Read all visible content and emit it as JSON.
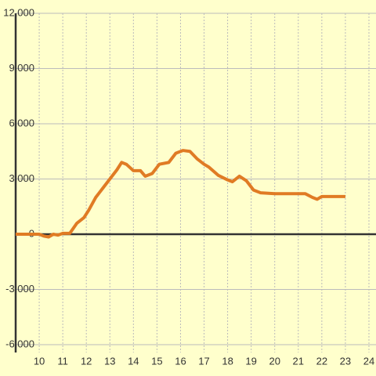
{
  "chart_data": {
    "type": "line",
    "x": [
      9,
      10,
      10.2,
      10.4,
      10.6,
      10.8,
      11,
      11.3,
      11.6,
      11.9,
      12.1,
      12.4,
      12.7,
      13,
      13.3,
      13.5,
      13.7,
      14,
      14.3,
      14.5,
      14.8,
      15.1,
      15.5,
      15.8,
      16.1,
      16.4,
      16.7,
      17,
      17.2,
      17.6,
      18,
      18.2,
      18.5,
      18.8,
      19.1,
      19.4,
      20,
      21,
      21.3,
      21.6,
      21.8,
      22,
      23
    ],
    "series": [
      {
        "color": "#e07b24",
        "values": [
          0,
          0,
          -100,
          -150,
          0,
          -50,
          50,
          50,
          600,
          900,
          1300,
          2000,
          2500,
          3000,
          3500,
          3900,
          3800,
          3450,
          3450,
          3150,
          3300,
          3800,
          3900,
          4400,
          4550,
          4500,
          4100,
          3800,
          3650,
          3200,
          2950,
          2850,
          3150,
          2900,
          2400,
          2250,
          2200,
          2200,
          2200,
          2000,
          1900,
          2050,
          2050
        ]
      }
    ],
    "xlim": [
      9,
      24.3
    ],
    "xticks": [
      10,
      11,
      12,
      13,
      14,
      15,
      16,
      17,
      18,
      19,
      20,
      21,
      22,
      23,
      24
    ],
    "ylim": [
      -6000,
      12000
    ],
    "yticks": [
      {
        "value": -6000,
        "label": "-6,000"
      },
      {
        "value": -3000,
        "label": "-3,000"
      },
      0,
      {
        "value": 3000,
        "label": "3,000"
      },
      {
        "value": 6000,
        "label": "6,000"
      },
      {
        "value": 9000,
        "label": "9,000"
      },
      {
        "value": 12000,
        "label": "12,000"
      }
    ],
    "grid": true
  }
}
